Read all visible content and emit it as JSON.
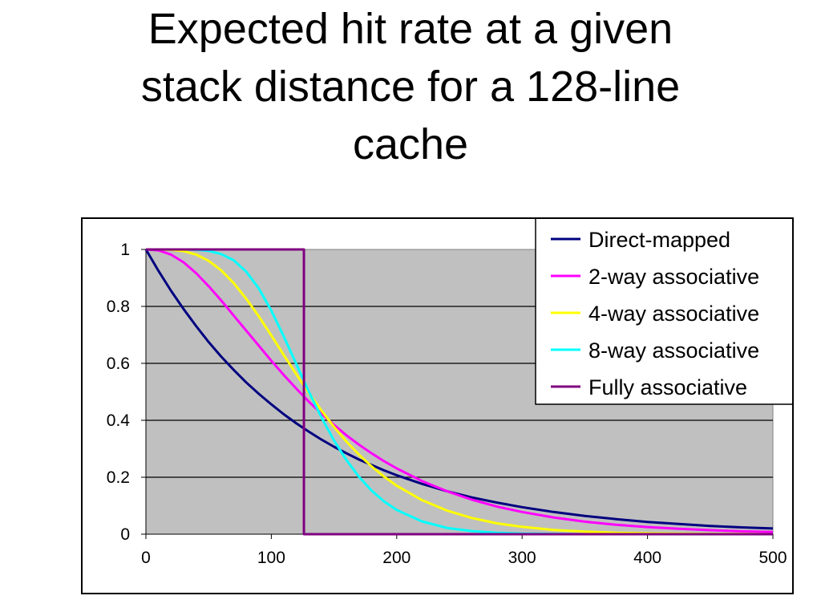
{
  "slide": {
    "title_lines": [
      "Expected hit rate at a given",
      "stack distance for a 128-line",
      "cache"
    ]
  },
  "chart_data": {
    "type": "line",
    "title": "",
    "xlabel": "",
    "ylabel": "",
    "xlim": [
      0,
      500
    ],
    "ylim": [
      0,
      1
    ],
    "x_ticks": [
      "0",
      "100",
      "200",
      "300",
      "400",
      "500"
    ],
    "y_ticks": [
      "0",
      "0.2",
      "0.4",
      "0.6",
      "0.8",
      "1"
    ],
    "grid": "horizontal",
    "plot_background": "#c0c0c0",
    "legend_position": "top-right",
    "x": [
      0,
      10,
      20,
      30,
      40,
      50,
      60,
      70,
      80,
      90,
      100,
      110,
      120,
      130,
      140,
      150,
      160,
      170,
      180,
      190,
      200,
      220,
      240,
      260,
      280,
      300,
      325,
      350,
      375,
      400,
      425,
      450,
      475,
      500
    ],
    "series": [
      {
        "name": "Direct-mapped",
        "color": "#000080",
        "values": [
          1,
          0.925,
          0.855,
          0.791,
          0.731,
          0.675,
          0.624,
          0.577,
          0.533,
          0.493,
          0.456,
          0.421,
          0.389,
          0.36,
          0.332,
          0.307,
          0.284,
          0.262,
          0.243,
          0.224,
          0.207,
          0.177,
          0.151,
          0.129,
          0.111,
          0.095,
          0.078,
          0.064,
          0.053,
          0.043,
          0.036,
          0.029,
          0.024,
          0.02
        ]
      },
      {
        "name": "2-way associative",
        "color": "#ff00ff",
        "values": [
          1,
          0.997,
          0.982,
          0.955,
          0.917,
          0.871,
          0.821,
          0.768,
          0.715,
          0.662,
          0.609,
          0.559,
          0.511,
          0.465,
          0.423,
          0.384,
          0.347,
          0.314,
          0.284,
          0.256,
          0.231,
          0.187,
          0.151,
          0.121,
          0.097,
          0.078,
          0.059,
          0.044,
          0.033,
          0.025,
          0.019,
          0.014,
          0.01,
          0.008
        ]
      },
      {
        "name": "4-way associative",
        "color": "#ffff00",
        "values": [
          1,
          1,
          0.999,
          0.994,
          0.982,
          0.96,
          0.927,
          0.882,
          0.827,
          0.765,
          0.698,
          0.629,
          0.561,
          0.495,
          0.434,
          0.377,
          0.325,
          0.279,
          0.238,
          0.202,
          0.17,
          0.12,
          0.083,
          0.057,
          0.038,
          0.026,
          0.015,
          0.009,
          0.005,
          0.003,
          0.002,
          0.001,
          0.001,
          0
        ]
      },
      {
        "name": "8-way associative",
        "color": "#00ffff",
        "values": [
          1,
          1,
          1,
          1,
          0.999,
          0.995,
          0.984,
          0.962,
          0.922,
          0.863,
          0.785,
          0.694,
          0.597,
          0.5,
          0.41,
          0.329,
          0.26,
          0.201,
          0.153,
          0.115,
          0.085,
          0.045,
          0.022,
          0.011,
          0.005,
          0.002,
          0.001,
          0,
          0,
          0,
          0,
          0,
          0,
          0
        ]
      },
      {
        "name": "Fully associative",
        "color": "#800080",
        "values": [
          1,
          1,
          1,
          1,
          1,
          1,
          1,
          1,
          1,
          1,
          1,
          1,
          1,
          0,
          0,
          0,
          0,
          0,
          0,
          0,
          0,
          0,
          0,
          0,
          0,
          0,
          0,
          0,
          0,
          0,
          0,
          0,
          0,
          0
        ]
      }
    ]
  }
}
